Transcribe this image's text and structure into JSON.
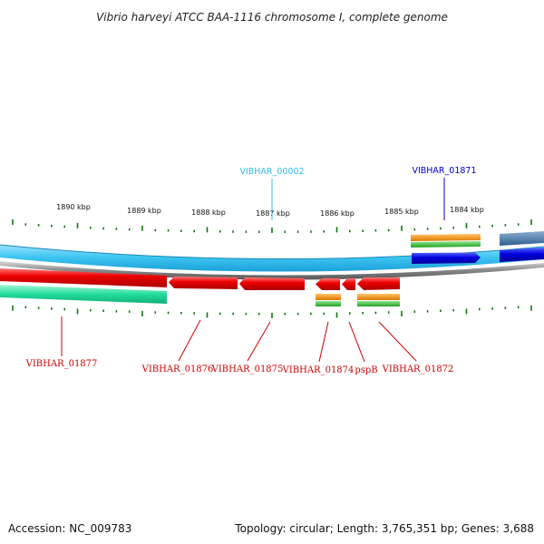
{
  "title": "Vibrio harveyi ATCC BAA-1116 chromosome I, complete genome",
  "scale_ticks": [
    "1890 kbp",
    "1889 kbp",
    "1888 kbp",
    "1887 kbp",
    "1886 kbp",
    "1885 kbp",
    "1884 kbp"
  ],
  "top_labels": [
    {
      "text": "VIBHAR_00002",
      "color": "#33bbee"
    },
    {
      "text": "VIBHAR_01871",
      "color": "#0000cc"
    }
  ],
  "bottom_labels": [
    "VIBHAR_01877",
    "VIBHAR_01876",
    "VIBHAR_01875",
    "VIBHAR_01874",
    "pspB",
    "VIBHAR_01872"
  ],
  "colors": {
    "gene_red": "#ee0000",
    "gene_blue": "#0000dd",
    "cds_orange": "#f08a00",
    "cds_green": "#33bb33",
    "light_blue_track": "#3fc6f2",
    "teal_track": "#22dd99",
    "tick_green": "#117711",
    "label_red": "#cc0000"
  },
  "footer": {
    "accession": "Accession: NC_009783",
    "stats": "Topology: circular; Length: 3,765,351 bp; Genes: 3,688"
  }
}
